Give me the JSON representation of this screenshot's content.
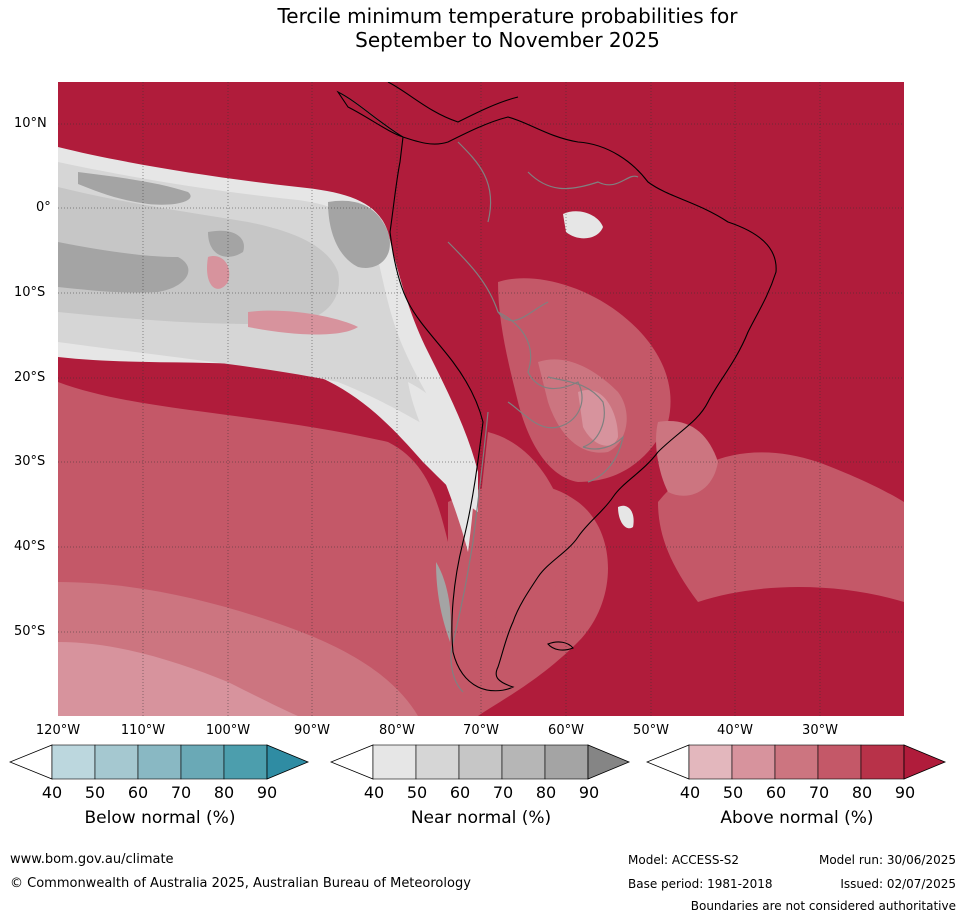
{
  "title_line1": "Tercile minimum temperature probabilities for",
  "title_line2": "September to November 2025",
  "lat_labels": [
    "10°N",
    "0°",
    "10°S",
    "20°S",
    "30°S",
    "40°S",
    "50°S"
  ],
  "lon_labels": [
    "120°W",
    "110°W",
    "100°W",
    "90°W",
    "80°W",
    "70°W",
    "60°W",
    "50°W",
    "40°W",
    "30°W"
  ],
  "colorbars": [
    {
      "label": "Below normal (%)",
      "ticks": [
        "40",
        "50",
        "60",
        "70",
        "80",
        "90"
      ],
      "colors": [
        "#ffffff",
        "#bcd7de",
        "#a5c8d0",
        "#89b8c3",
        "#6aa9b6",
        "#4c9ead",
        "#2f8ca3"
      ]
    },
    {
      "label": "Near normal (%)",
      "ticks": [
        "40",
        "50",
        "60",
        "70",
        "80",
        "90"
      ],
      "colors": [
        "#ffffff",
        "#e6e6e6",
        "#d6d6d6",
        "#c6c6c6",
        "#b6b6b6",
        "#a4a4a4",
        "#858585"
      ]
    },
    {
      "label": "Above normal (%)",
      "ticks": [
        "40",
        "50",
        "60",
        "70",
        "80",
        "90"
      ],
      "colors": [
        "#ffffff",
        "#e3b7bd",
        "#d7939d",
        "#cc7580",
        "#c45868",
        "#b83249",
        "#b01c3b"
      ]
    }
  ],
  "footer": {
    "website": "www.bom.gov.au/climate",
    "copyright": "© Commonwealth of Australia 2025, Australian Bureau of Meteorology",
    "model": "Model: ACCESS-S2",
    "base_period": "Base period: 1981-2018",
    "model_run": "Model run: 30/06/2025",
    "issued": "Issued: 02/07/2025",
    "disclaimer": "Boundaries are not considered authoritative"
  }
}
